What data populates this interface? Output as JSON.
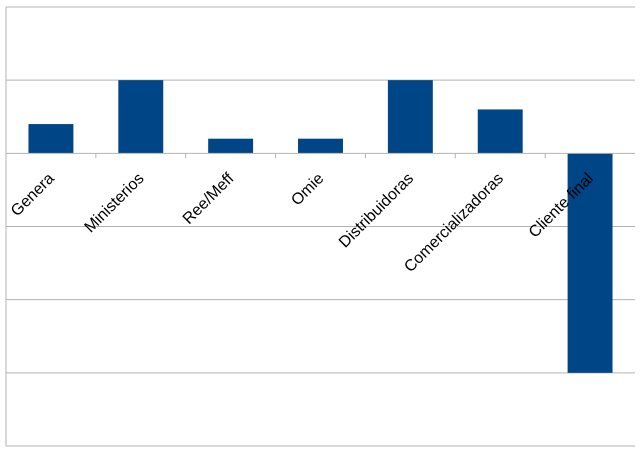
{
  "chart_data": {
    "type": "bar",
    "categories": [
      "Genera",
      "Ministerios",
      "Ree/Meff",
      "Omie",
      "Distribuidoras",
      "Comercializadoras",
      "Cliente final"
    ],
    "values": [
      2,
      5,
      1,
      1,
      5,
      3,
      -15
    ],
    "ylim": [
      -20,
      10
    ],
    "grid": true,
    "legend": "none",
    "bar_color": "#004586",
    "grid_color": "#b3b3b3"
  }
}
